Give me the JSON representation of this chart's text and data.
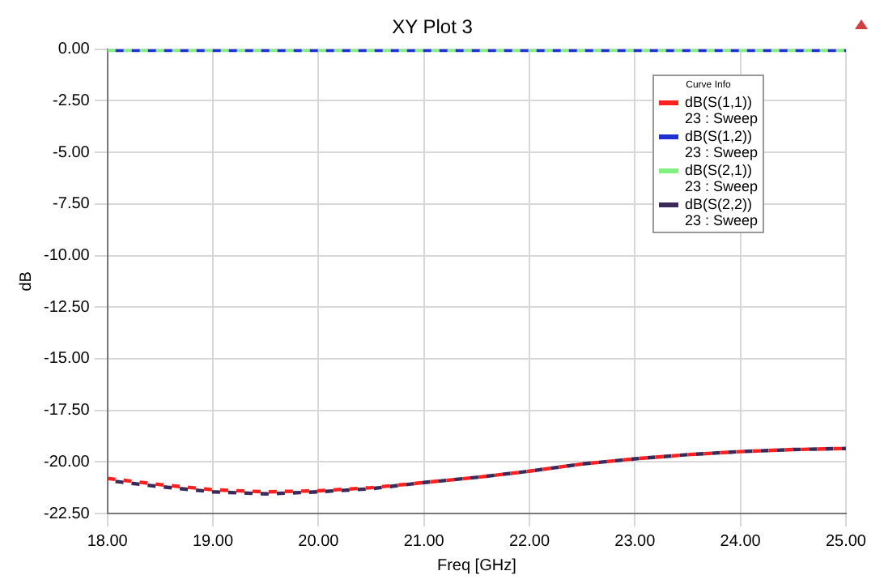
{
  "chart_data": {
    "type": "line",
    "title": "XY Plot 3",
    "xlabel": "Freq [GHz]",
    "ylabel": "dB",
    "legend_title": "Curve Info",
    "x": [
      18,
      18.5,
      19,
      19.5,
      20,
      20.5,
      21,
      21.5,
      22,
      22.5,
      23,
      23.5,
      24,
      24.5,
      25
    ],
    "series": [
      {
        "name": "dB(S(1,1))\n23 : Sweep",
        "color": "#ff2020",
        "values": [
          -20.8,
          -21.1,
          -21.35,
          -21.45,
          -21.4,
          -21.25,
          -21.0,
          -20.75,
          -20.45,
          -20.1,
          -19.85,
          -19.65,
          -19.5,
          -19.4,
          -19.35
        ]
      },
      {
        "name": "dB(S(1,2))\n23 : Sweep",
        "color": "#2030d0",
        "values": [
          -0.05,
          -0.05,
          -0.05,
          -0.05,
          -0.05,
          -0.05,
          -0.05,
          -0.05,
          -0.05,
          -0.05,
          -0.05,
          -0.05,
          -0.05,
          -0.05,
          -0.05
        ]
      },
      {
        "name": "dB(S(2,1))\n23 : Sweep",
        "color": "#80f080",
        "values": [
          -0.05,
          -0.05,
          -0.05,
          -0.05,
          -0.05,
          -0.05,
          -0.05,
          -0.05,
          -0.05,
          -0.05,
          -0.05,
          -0.05,
          -0.05,
          -0.05,
          -0.05
        ]
      },
      {
        "name": "dB(S(2,2))\n23 : Sweep",
        "color": "#3a2a5a",
        "values": [
          -20.9,
          -21.2,
          -21.45,
          -21.55,
          -21.45,
          -21.3,
          -21.0,
          -20.75,
          -20.45,
          -20.1,
          -19.85,
          -19.65,
          -19.5,
          -19.4,
          -19.35
        ]
      }
    ],
    "xlim": [
      18,
      25
    ],
    "xticks": [
      {
        "value": 18,
        "label": "18.00"
      },
      {
        "value": 19,
        "label": "19.00"
      },
      {
        "value": 20,
        "label": "20.00"
      },
      {
        "value": 21,
        "label": "21.00"
      },
      {
        "value": 22,
        "label": "22.00"
      },
      {
        "value": 23,
        "label": "23.00"
      },
      {
        "value": 24,
        "label": "24.00"
      },
      {
        "value": 25,
        "label": "25.00"
      }
    ],
    "ylim": [
      -22.5,
      0
    ],
    "yticks": [
      {
        "value": 0,
        "label": "0.00"
      },
      {
        "value": -2.5,
        "label": "-2.50"
      },
      {
        "value": -5,
        "label": "-5.00"
      },
      {
        "value": -7.5,
        "label": "-7.50"
      },
      {
        "value": -10,
        "label": "-10.00"
      },
      {
        "value": -12.5,
        "label": "-12.50"
      },
      {
        "value": -15,
        "label": "-15.00"
      },
      {
        "value": -17.5,
        "label": "-17.50"
      },
      {
        "value": -20,
        "label": "-20.00"
      },
      {
        "value": -22.5,
        "label": "-22.50"
      }
    ],
    "grid": true,
    "legend": "top right",
    "line_style": "dashed",
    "marker": "none"
  }
}
